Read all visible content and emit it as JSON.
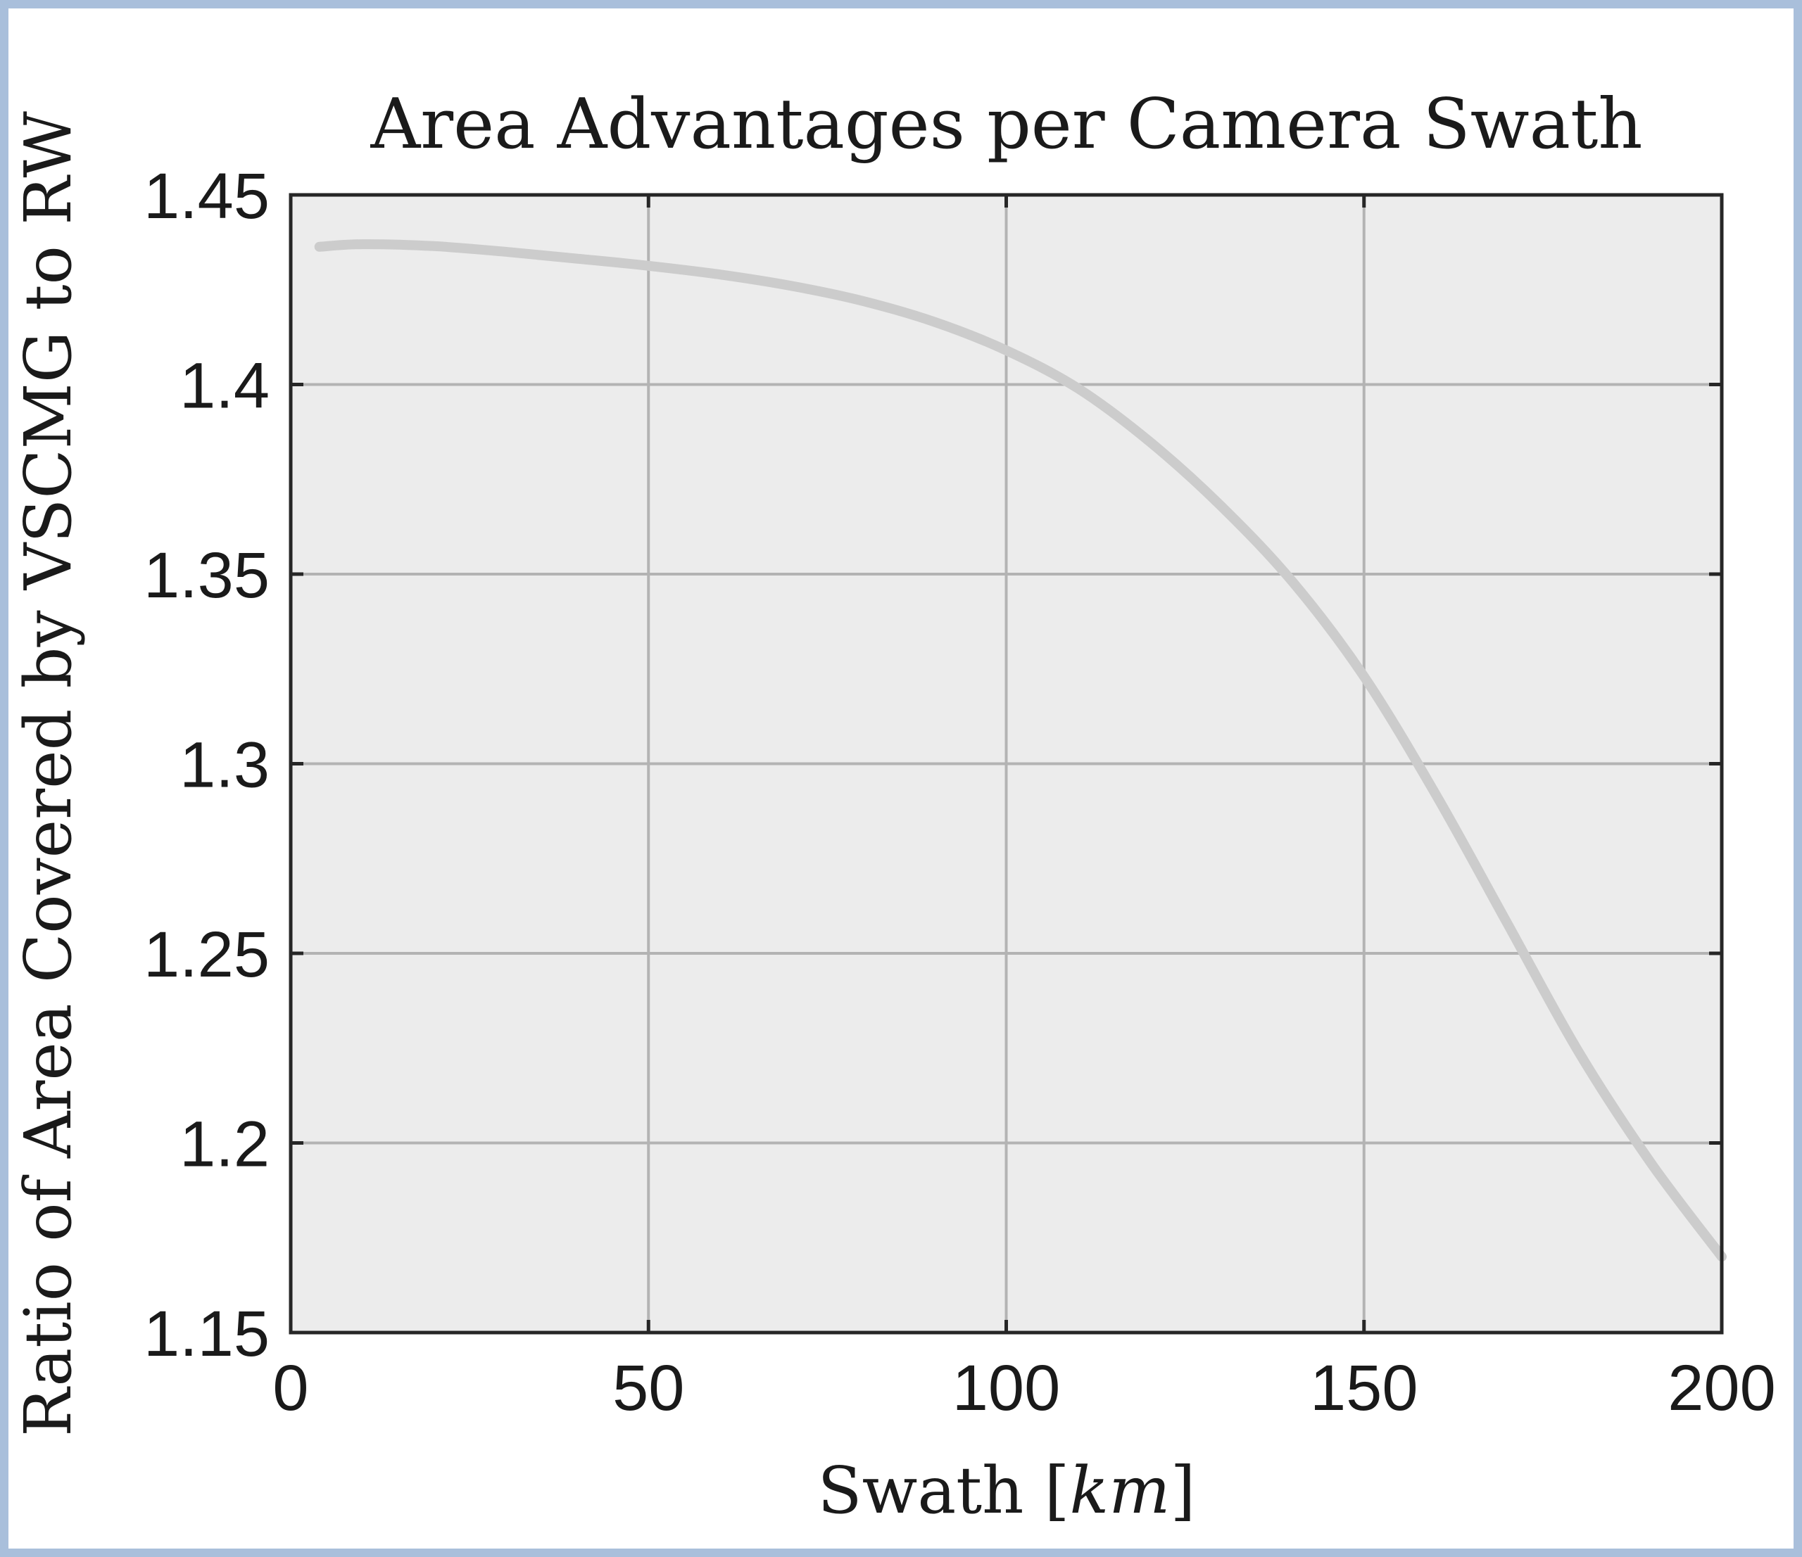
{
  "chart_data": {
    "type": "line",
    "title": "Area Advantages per Camera Swath",
    "xlabel": "Swath",
    "xlabel_unit": "km",
    "ylabel": "Ratio of Area Covered by VSCMG to RW",
    "xlim": [
      0,
      200
    ],
    "ylim": [
      1.15,
      1.45
    ],
    "xticks": [
      0,
      50,
      100,
      150,
      200
    ],
    "yticks": [
      1.15,
      1.2,
      1.25,
      1.3,
      1.35,
      1.4,
      1.45
    ],
    "xtick_labels": [
      "0",
      "50",
      "100",
      "150",
      "200"
    ],
    "ytick_labels": [
      "1.15",
      "1.2",
      "1.25",
      "1.3",
      "1.35",
      "1.4",
      "1.45"
    ],
    "grid": true,
    "colors": {
      "line": "#cccccc",
      "plot_bg": "#ececec",
      "grid": "#b3b3b3",
      "axes": "#262626"
    },
    "series": [
      {
        "x": [
          4,
          10,
          20,
          30,
          40,
          50,
          60,
          70,
          80,
          90,
          100,
          110,
          120,
          130,
          140,
          150,
          160,
          170,
          180,
          190,
          200
        ],
        "values": [
          1.4363,
          1.437,
          1.4365,
          1.435,
          1.4332,
          1.4313,
          1.429,
          1.426,
          1.422,
          1.4165,
          1.409,
          1.399,
          1.385,
          1.368,
          1.348,
          1.323,
          1.292,
          1.258,
          1.224,
          1.195,
          1.17
        ]
      }
    ]
  }
}
